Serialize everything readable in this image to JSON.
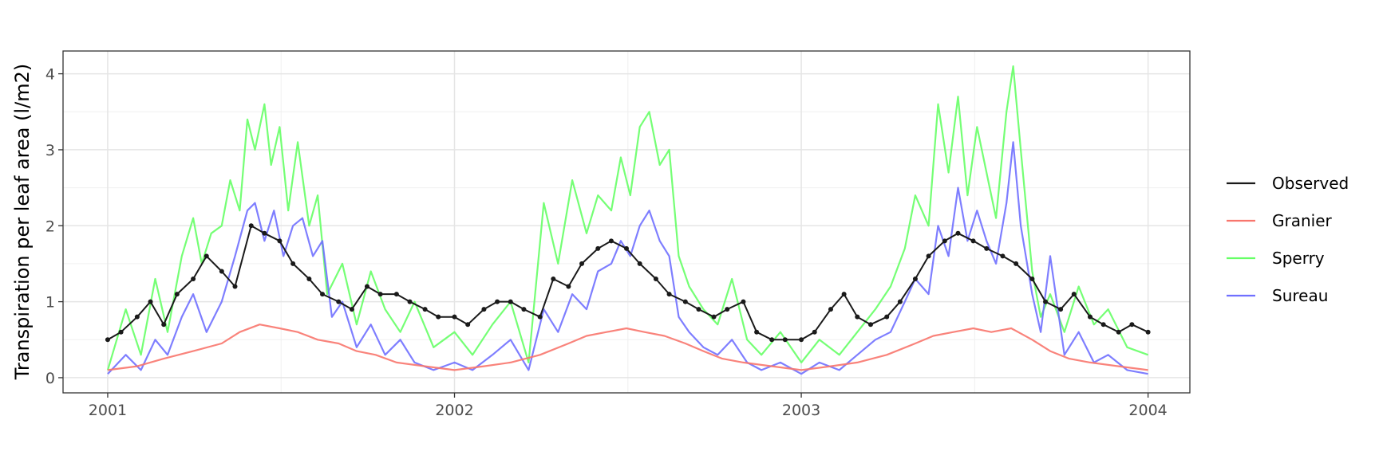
{
  "chart_data": {
    "type": "line",
    "title": "",
    "xlabel": "",
    "ylabel": "Transpiration per leaf area (l/m2)",
    "xlim": [
      "2000-11-15",
      "2004-02-14"
    ],
    "ylim": [
      -0.2,
      4.3
    ],
    "x_ticks": [
      "2001-01-01",
      "2002-01-01",
      "2003-01-01",
      "2004-01-01"
    ],
    "x_tick_labels": [
      "2001",
      "2002",
      "2003",
      "2004"
    ],
    "y_ticks": [
      0,
      1,
      2,
      3,
      4
    ],
    "y_tick_labels": [
      "0",
      "1",
      "2",
      "3",
      "4"
    ],
    "grid": true,
    "legend_position": "right",
    "colors": {
      "Observed": "#1a1a1a",
      "Granier": "#f8766d",
      "Sperry": "#66ff66",
      "Sureau": "#7070ff"
    },
    "series": [
      {
        "name": "Sperry",
        "x": [
          "2001-01-01",
          "2001-01-20",
          "2001-02-05",
          "2001-02-20",
          "2001-03-05",
          "2001-03-20",
          "2001-04-01",
          "2001-04-10",
          "2001-04-20",
          "2001-05-01",
          "2001-05-10",
          "2001-05-20",
          "2001-05-28",
          "2001-06-05",
          "2001-06-15",
          "2001-06-22",
          "2001-07-01",
          "2001-07-10",
          "2001-07-20",
          "2001-08-01",
          "2001-08-10",
          "2001-08-20",
          "2001-09-05",
          "2001-09-20",
          "2001-10-05",
          "2001-10-20",
          "2001-11-05",
          "2001-11-20",
          "2001-12-10",
          "2002-01-01",
          "2002-01-20",
          "2002-02-10",
          "2002-03-01",
          "2002-03-20",
          "2002-04-05",
          "2002-04-20",
          "2002-05-05",
          "2002-05-20",
          "2002-06-01",
          "2002-06-15",
          "2002-06-25",
          "2002-07-05",
          "2002-07-15",
          "2002-07-25",
          "2002-08-05",
          "2002-08-15",
          "2002-08-25",
          "2002-09-05",
          "2002-09-20",
          "2002-10-05",
          "2002-10-20",
          "2002-11-05",
          "2002-11-20",
          "2002-12-10",
          "2003-01-01",
          "2003-01-20",
          "2003-02-10",
          "2003-03-01",
          "2003-03-20",
          "2003-04-05",
          "2003-04-20",
          "2003-05-01",
          "2003-05-15",
          "2003-05-25",
          "2003-06-05",
          "2003-06-15",
          "2003-06-25",
          "2003-07-05",
          "2003-07-15",
          "2003-07-25",
          "2003-08-05",
          "2003-08-12",
          "2003-08-20",
          "2003-09-01",
          "2003-09-10",
          "2003-09-20",
          "2003-10-05",
          "2003-10-20",
          "2003-11-05",
          "2003-11-20",
          "2003-12-10",
          "2004-01-01"
        ],
        "y": [
          0.1,
          0.9,
          0.3,
          1.3,
          0.6,
          1.6,
          2.1,
          1.5,
          1.9,
          2.0,
          2.6,
          2.2,
          3.4,
          3.0,
          3.6,
          2.8,
          3.3,
          2.2,
          3.1,
          2.0,
          2.4,
          1.1,
          1.5,
          0.7,
          1.4,
          0.9,
          0.6,
          1.0,
          0.4,
          0.6,
          0.3,
          0.7,
          1.0,
          0.2,
          2.3,
          1.5,
          2.6,
          1.9,
          2.4,
          2.2,
          2.9,
          2.4,
          3.3,
          3.5,
          2.8,
          3.0,
          1.6,
          1.2,
          0.9,
          0.7,
          1.3,
          0.5,
          0.3,
          0.6,
          0.2,
          0.5,
          0.3,
          0.6,
          0.9,
          1.2,
          1.7,
          2.4,
          2.0,
          3.6,
          2.7,
          3.7,
          2.4,
          3.3,
          2.7,
          2.1,
          3.5,
          4.1,
          3.0,
          1.4,
          0.8,
          1.1,
          0.6,
          1.2,
          0.7,
          0.9,
          0.4,
          0.3
        ]
      },
      {
        "name": "Sureau",
        "x": [
          "2001-01-01",
          "2001-01-20",
          "2001-02-05",
          "2001-02-20",
          "2001-03-05",
          "2001-03-20",
          "2001-04-01",
          "2001-04-15",
          "2001-05-01",
          "2001-05-15",
          "2001-05-28",
          "2001-06-05",
          "2001-06-15",
          "2001-06-25",
          "2001-07-05",
          "2001-07-15",
          "2001-07-25",
          "2001-08-05",
          "2001-08-15",
          "2001-08-25",
          "2001-09-05",
          "2001-09-20",
          "2001-10-05",
          "2001-10-20",
          "2001-11-05",
          "2001-11-20",
          "2001-12-10",
          "2002-01-01",
          "2002-01-20",
          "2002-02-10",
          "2002-03-01",
          "2002-03-20",
          "2002-04-05",
          "2002-04-20",
          "2002-05-05",
          "2002-05-20",
          "2002-06-01",
          "2002-06-15",
          "2002-06-25",
          "2002-07-05",
          "2002-07-15",
          "2002-07-25",
          "2002-08-05",
          "2002-08-15",
          "2002-08-25",
          "2002-09-05",
          "2002-09-20",
          "2002-10-05",
          "2002-10-20",
          "2002-11-05",
          "2002-11-20",
          "2002-12-10",
          "2003-01-01",
          "2003-01-20",
          "2003-02-10",
          "2003-03-01",
          "2003-03-20",
          "2003-04-05",
          "2003-04-20",
          "2003-05-01",
          "2003-05-15",
          "2003-05-25",
          "2003-06-05",
          "2003-06-15",
          "2003-06-25",
          "2003-07-05",
          "2003-07-15",
          "2003-07-25",
          "2003-08-05",
          "2003-08-12",
          "2003-08-20",
          "2003-09-01",
          "2003-09-10",
          "2003-09-20",
          "2003-10-05",
          "2003-10-20",
          "2003-11-05",
          "2003-11-20",
          "2003-12-10",
          "2004-01-01"
        ],
        "y": [
          0.05,
          0.3,
          0.1,
          0.5,
          0.3,
          0.8,
          1.1,
          0.6,
          1.0,
          1.6,
          2.2,
          2.3,
          1.8,
          2.2,
          1.6,
          2.0,
          2.1,
          1.6,
          1.8,
          0.8,
          1.0,
          0.4,
          0.7,
          0.3,
          0.5,
          0.2,
          0.1,
          0.2,
          0.1,
          0.3,
          0.5,
          0.1,
          0.9,
          0.6,
          1.1,
          0.9,
          1.4,
          1.5,
          1.8,
          1.6,
          2.0,
          2.2,
          1.8,
          1.6,
          0.8,
          0.6,
          0.4,
          0.3,
          0.5,
          0.2,
          0.1,
          0.2,
          0.05,
          0.2,
          0.1,
          0.3,
          0.5,
          0.6,
          1.0,
          1.3,
          1.1,
          2.0,
          1.6,
          2.5,
          1.8,
          2.2,
          1.8,
          1.5,
          2.3,
          3.1,
          2.0,
          1.1,
          0.6,
          1.6,
          0.3,
          0.6,
          0.2,
          0.3,
          0.1,
          0.05
        ]
      },
      {
        "name": "Granier",
        "x": [
          "2001-01-01",
          "2001-02-01",
          "2001-03-01",
          "2001-04-01",
          "2001-05-01",
          "2001-05-20",
          "2001-06-10",
          "2001-07-01",
          "2001-07-20",
          "2001-08-10",
          "2001-09-01",
          "2001-09-20",
          "2001-10-10",
          "2001-11-01",
          "2001-12-01",
          "2002-01-01",
          "2002-02-01",
          "2002-03-01",
          "2002-04-01",
          "2002-05-01",
          "2002-05-20",
          "2002-06-10",
          "2002-07-01",
          "2002-07-20",
          "2002-08-10",
          "2002-09-01",
          "2002-09-20",
          "2002-10-10",
          "2002-11-01",
          "2002-12-01",
          "2003-01-01",
          "2003-02-01",
          "2003-03-01",
          "2003-04-01",
          "2003-05-01",
          "2003-05-20",
          "2003-06-10",
          "2003-07-01",
          "2003-07-20",
          "2003-08-10",
          "2003-09-01",
          "2003-09-20",
          "2003-10-10",
          "2003-11-01",
          "2003-12-01",
          "2004-01-01"
        ],
        "y": [
          0.1,
          0.15,
          0.25,
          0.35,
          0.45,
          0.6,
          0.7,
          0.65,
          0.6,
          0.5,
          0.45,
          0.35,
          0.3,
          0.2,
          0.15,
          0.1,
          0.15,
          0.2,
          0.3,
          0.45,
          0.55,
          0.6,
          0.65,
          0.6,
          0.55,
          0.45,
          0.35,
          0.25,
          0.2,
          0.15,
          0.1,
          0.15,
          0.2,
          0.3,
          0.45,
          0.55,
          0.6,
          0.65,
          0.6,
          0.65,
          0.5,
          0.35,
          0.25,
          0.2,
          0.15,
          0.1
        ]
      },
      {
        "name": "Observed",
        "x": [
          "2001-01-01",
          "2001-01-15",
          "2001-02-01",
          "2001-02-15",
          "2001-03-01",
          "2001-03-15",
          "2001-04-01",
          "2001-04-15",
          "2001-05-01",
          "2001-05-15",
          "2001-06-01",
          "2001-06-15",
          "2001-07-01",
          "2001-07-15",
          "2001-08-01",
          "2001-08-15",
          "2001-09-01",
          "2001-09-15",
          "2001-10-01",
          "2001-10-15",
          "2001-11-01",
          "2001-11-15",
          "2001-12-01",
          "2001-12-15",
          "2002-01-01",
          "2002-01-15",
          "2002-02-01",
          "2002-02-15",
          "2002-03-01",
          "2002-03-15",
          "2002-04-01",
          "2002-04-15",
          "2002-05-01",
          "2002-05-15",
          "2002-06-01",
          "2002-06-15",
          "2002-07-01",
          "2002-07-15",
          "2002-08-01",
          "2002-08-15",
          "2002-09-01",
          "2002-09-15",
          "2002-10-01",
          "2002-10-15",
          "2002-11-01",
          "2002-11-15",
          "2002-12-01",
          "2002-12-15",
          "2003-01-01",
          "2003-01-15",
          "2003-02-01",
          "2003-02-15",
          "2003-03-01",
          "2003-03-15",
          "2003-04-01",
          "2003-04-15",
          "2003-05-01",
          "2003-05-15",
          "2003-06-01",
          "2003-06-15",
          "2003-07-01",
          "2003-07-15",
          "2003-08-01",
          "2003-08-15",
          "2003-09-01",
          "2003-09-15",
          "2003-10-01",
          "2003-10-15",
          "2003-11-01",
          "2003-11-15",
          "2003-12-01",
          "2003-12-15",
          "2004-01-01"
        ],
        "y": [
          0.5,
          0.6,
          0.8,
          1.0,
          0.7,
          1.1,
          1.3,
          1.6,
          1.4,
          1.2,
          2.0,
          1.9,
          1.8,
          1.5,
          1.3,
          1.1,
          1.0,
          0.9,
          1.2,
          1.1,
          1.1,
          1.0,
          0.9,
          0.8,
          0.8,
          0.7,
          0.9,
          1.0,
          1.0,
          0.9,
          0.8,
          1.3,
          1.2,
          1.5,
          1.7,
          1.8,
          1.7,
          1.5,
          1.3,
          1.1,
          1.0,
          0.9,
          0.8,
          0.9,
          1.0,
          0.6,
          0.5,
          0.5,
          0.5,
          0.6,
          0.9,
          1.1,
          0.8,
          0.7,
          0.8,
          1.0,
          1.3,
          1.6,
          1.8,
          1.9,
          1.8,
          1.7,
          1.6,
          1.5,
          1.3,
          1.0,
          0.9,
          1.1,
          0.8,
          0.7,
          0.6,
          0.7,
          0.6
        ]
      }
    ]
  }
}
